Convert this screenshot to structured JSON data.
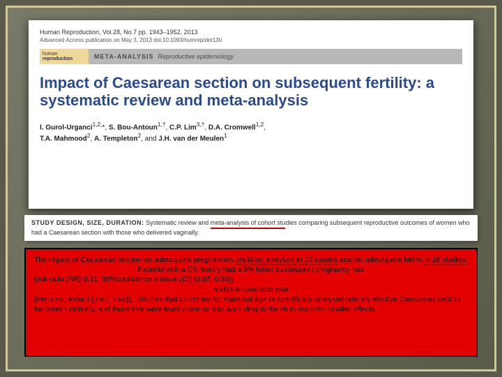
{
  "journal": {
    "ref": "Human Reproduction, Vol.28, No.7 pp. 1943–1952, 2013",
    "access": "Advanced Access publication on May 3, 2013   doi:10.1093/humrep/det130"
  },
  "header": {
    "journal_word1": "human",
    "journal_word2": "reproduction",
    "meta_label": "META-ANALYSIS",
    "meta_topic": "Reproductive epidemiology"
  },
  "title": "Impact of Caesarean section on subsequent fertility: a systematic review and meta-analysis",
  "authors_html": "I. Gurol-Urganci¹,²,*, S. Bou-Antoun¹,†, C.P. Lim³,†, D.A. Cromwell¹,², T.A. Mahmood², A. Templeton², and J.H. van der Meulen¹",
  "study_design": {
    "label": "STUDY DESIGN, SIZE, DURATION:",
    "text_pre": "Systematic review and ",
    "text_underlined": "meta-analysis of cohort stu",
    "text_post": "dies comparing subsequent reproductive outcomes of women who had a Caesarean section with those who delivered vaginally."
  },
  "findings": {
    "line1_pre": "The impact of Caesarean section on subsequent pregnancies ",
    "line1_u1": "could be analysed in 10 studies",
    "line1_mid": " and on subsequent births ",
    "line1_u2": "in 16 studies.",
    "line2": "Patients with a CS history had a 9% lower subsequent pregnancy rate",
    "line3": "[risk ratio (RR) 0.91, 95%confidence interval (CI) (0.87, 0.95)]",
    "line4": "and11%lower birth rate",
    "line5": "[RR 0.89, 95%CI (0.87, 0.92)], . Studies that controlled for maternal age or specifically analysed primary elective Caesarean section for breech delivery, and those that were least prone to bias according to the NOS reported smaller effects."
  }
}
